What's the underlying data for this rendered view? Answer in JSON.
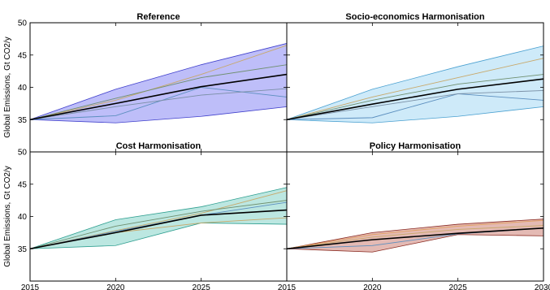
{
  "chart_data": [
    {
      "type": "area",
      "title": "Reference",
      "ylabel": "Global Emissions, Gt CO2/y",
      "x": [
        2015,
        2020,
        2025,
        2030
      ],
      "xlim": [
        2015,
        2030
      ],
      "ylim": [
        30,
        50
      ],
      "yticks": [
        35,
        40,
        45,
        50
      ],
      "xticks": [
        2015,
        2020,
        2025,
        2030
      ],
      "band": {
        "lower": [
          35,
          34.5,
          35.5,
          37
        ],
        "upper": [
          35,
          39.7,
          43.5,
          46.8
        ],
        "fill": "#5555ee",
        "stroke": "#4040cc"
      },
      "series": [
        {
          "values": [
            35,
            38,
            42,
            46.5
          ],
          "color": "#c8a86a"
        },
        {
          "values": [
            35,
            38.3,
            41.5,
            43.5
          ],
          "color": "#6f8f6f"
        },
        {
          "values": [
            35,
            35.6,
            40,
            38.5
          ],
          "color": "#5c8fbf"
        },
        {
          "values": [
            35,
            37,
            38.8,
            39.8
          ],
          "color": "#7a8fa5"
        },
        {
          "values": [
            35,
            37.5,
            40.1,
            42
          ],
          "color": "#000000"
        }
      ]
    },
    {
      "type": "area",
      "title": "Socio-economics Harmonisation",
      "ylabel": "",
      "x": [
        2015,
        2020,
        2025,
        2030
      ],
      "xlim": [
        2015,
        2030
      ],
      "ylim": [
        30,
        50
      ],
      "yticks": [
        35,
        40,
        45,
        50
      ],
      "xticks": [
        2015,
        2020,
        2025,
        2030
      ],
      "band": {
        "lower": [
          35,
          34.5,
          35.5,
          37
        ],
        "upper": [
          35,
          39.7,
          43.2,
          46.4
        ],
        "fill": "#7ec8ee",
        "stroke": "#4aa0d0"
      },
      "series": [
        {
          "values": [
            35,
            38.5,
            41.5,
            44.5
          ],
          "color": "#c8a86a"
        },
        {
          "values": [
            35,
            38,
            40.5,
            42
          ],
          "color": "#6f8f6f"
        },
        {
          "values": [
            35,
            35.3,
            39,
            38
          ],
          "color": "#5c8fbf"
        },
        {
          "values": [
            35,
            37,
            39,
            39.5
          ],
          "color": "#7a8fa5"
        },
        {
          "values": [
            35,
            37.4,
            39.7,
            41.3
          ],
          "color": "#000000"
        }
      ]
    },
    {
      "type": "area",
      "title": "Cost Harmonisation",
      "ylabel": "Global Emissions, Gt CO2/y",
      "x": [
        2015,
        2020,
        2025,
        2030
      ],
      "xlim": [
        2015,
        2030
      ],
      "ylim": [
        30,
        50
      ],
      "yticks": [
        35,
        40,
        45,
        50
      ],
      "xticks": [
        2015,
        2020,
        2025,
        2030
      ],
      "band": {
        "lower": [
          35,
          35.5,
          39,
          38.8
        ],
        "upper": [
          35,
          39.5,
          41.5,
          44.5
        ],
        "fill": "#4fbfb0",
        "stroke": "#2f9f90"
      },
      "series": [
        {
          "values": [
            35,
            37.8,
            40.5,
            44
          ],
          "color": "#c8a86a"
        },
        {
          "values": [
            35,
            38.5,
            40.8,
            42.5
          ],
          "color": "#6f8f6f"
        },
        {
          "values": [
            35,
            37.7,
            40.2,
            42.2
          ],
          "color": "#5c8fbf"
        },
        {
          "values": [
            35,
            37.5,
            39,
            39.8
          ],
          "color": "#c8a86a"
        },
        {
          "values": [
            35,
            37.5,
            40.2,
            41
          ],
          "color": "#000000"
        }
      ]
    },
    {
      "type": "area",
      "title": "Policy Harmonisation",
      "ylabel": "",
      "x": [
        2015,
        2020,
        2025,
        2030
      ],
      "xlim": [
        2015,
        2030
      ],
      "ylim": [
        30,
        50
      ],
      "yticks": [
        35,
        40,
        45,
        50
      ],
      "xticks": [
        2015,
        2020,
        2025,
        2030
      ],
      "band": {
        "lower": [
          35,
          34.5,
          37.2,
          37
        ],
        "upper": [
          35,
          37.5,
          38.8,
          39.6
        ],
        "fill": "#b84a3a",
        "stroke": "#8a2a20"
      },
      "series": [
        {
          "values": [
            35,
            37.2,
            38.5,
            39.4
          ],
          "color": "#e0a060"
        },
        {
          "values": [
            35,
            36.8,
            38,
            38.6
          ],
          "color": "#c8a86a"
        },
        {
          "values": [
            35,
            35.5,
            37.3,
            38.2
          ],
          "color": "#5c8fbf"
        },
        {
          "values": [
            35,
            36.4,
            37.4,
            38.2
          ],
          "color": "#000000"
        }
      ]
    }
  ]
}
